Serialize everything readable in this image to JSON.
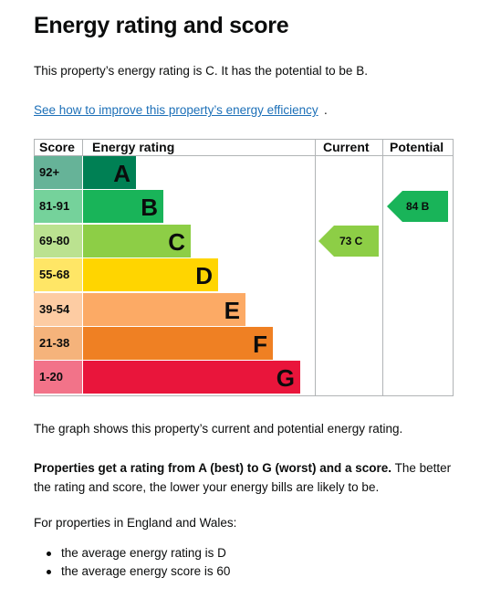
{
  "title": "Energy rating and score",
  "intro": "This property’s energy rating is C. It has the potential to be B.",
  "improve_link": "See how to improve this property’s energy efficiency",
  "improve_link_suffix": ".",
  "chart": {
    "headers": {
      "score": "Score",
      "energy_rating": "Energy rating",
      "current": "Current",
      "potential": "Potential"
    },
    "bands": [
      {
        "range": "92+",
        "letter": "A",
        "color": "#008054",
        "label_color": "#66b398"
      },
      {
        "range": "81-91",
        "letter": "B",
        "color": "#19b459",
        "label_color": "#75d29b"
      },
      {
        "range": "69-80",
        "letter": "C",
        "color": "#8dce46",
        "label_color": "#bbe290"
      },
      {
        "range": "55-68",
        "letter": "D",
        "color": "#ffd500",
        "label_color": "#ffe666"
      },
      {
        "range": "39-54",
        "letter": "E",
        "color": "#fcaa65",
        "label_color": "#fdcca3"
      },
      {
        "range": "21-38",
        "letter": "F",
        "color": "#ef8023",
        "label_color": "#f5b37b"
      },
      {
        "range": "1-20",
        "letter": "G",
        "color": "#e9153b",
        "label_color": "#f27389"
      }
    ],
    "current": {
      "text": "73 C",
      "score": 73,
      "band": "C",
      "color": "#8dce46"
    },
    "potential": {
      "text": "84 B",
      "score": 84,
      "band": "B",
      "color": "#19b459"
    }
  },
  "graph_caption": "The graph shows this property’s current and potential energy rating.",
  "rating_bold": "Properties get a rating from A (best) to G (worst) and a score.",
  "rating_rest": " The better the rating and score, the lower your energy bills are likely to be.",
  "england_wales": "For properties in England and Wales:",
  "averages": [
    "the average energy rating is D",
    "the average energy score is 60"
  ]
}
